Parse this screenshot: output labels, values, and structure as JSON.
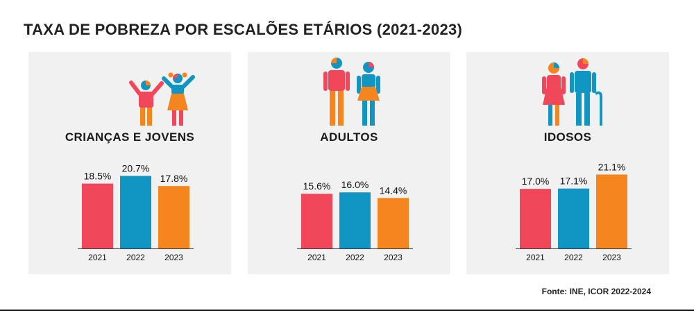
{
  "title": "TAXA DE POBREZA POR ESCALÕES ETÁRIOS (2021-2023)",
  "source": "Fonte: INE, ICOR 2022-2024",
  "colors": {
    "bar_2021": "#f0475a",
    "bar_2022": "#1195c3",
    "bar_2023": "#f5861f",
    "panel_bg": "#f1f1f1"
  },
  "panels": [
    {
      "title": "CRIANÇAS E JOVENS",
      "icon": "children-icon"
    },
    {
      "title": "ADULTOS",
      "icon": "adults-icon"
    },
    {
      "title": "IDOSOS",
      "icon": "elderly-icon"
    }
  ],
  "chart_data": [
    {
      "type": "bar",
      "title": "CRIANÇAS E JOVENS",
      "categories": [
        "2021",
        "2022",
        "2023"
      ],
      "values": [
        18.5,
        20.7,
        17.8
      ],
      "labels": [
        "18.5%",
        "20.7%",
        "17.8%"
      ],
      "ylim": [
        0,
        22
      ],
      "grid": false
    },
    {
      "type": "bar",
      "title": "ADULTOS",
      "categories": [
        "2021",
        "2022",
        "2023"
      ],
      "values": [
        15.6,
        16.0,
        14.4
      ],
      "labels": [
        "15.6%",
        "16.0%",
        "14.4%"
      ],
      "ylim": [
        0,
        22
      ],
      "grid": false
    },
    {
      "type": "bar",
      "title": "IDOSOS",
      "categories": [
        "2021",
        "2022",
        "2023"
      ],
      "values": [
        17.0,
        17.1,
        21.1
      ],
      "labels": [
        "17.0%",
        "17.1%",
        "21.1%"
      ],
      "ylim": [
        0,
        22
      ],
      "grid": false
    }
  ]
}
